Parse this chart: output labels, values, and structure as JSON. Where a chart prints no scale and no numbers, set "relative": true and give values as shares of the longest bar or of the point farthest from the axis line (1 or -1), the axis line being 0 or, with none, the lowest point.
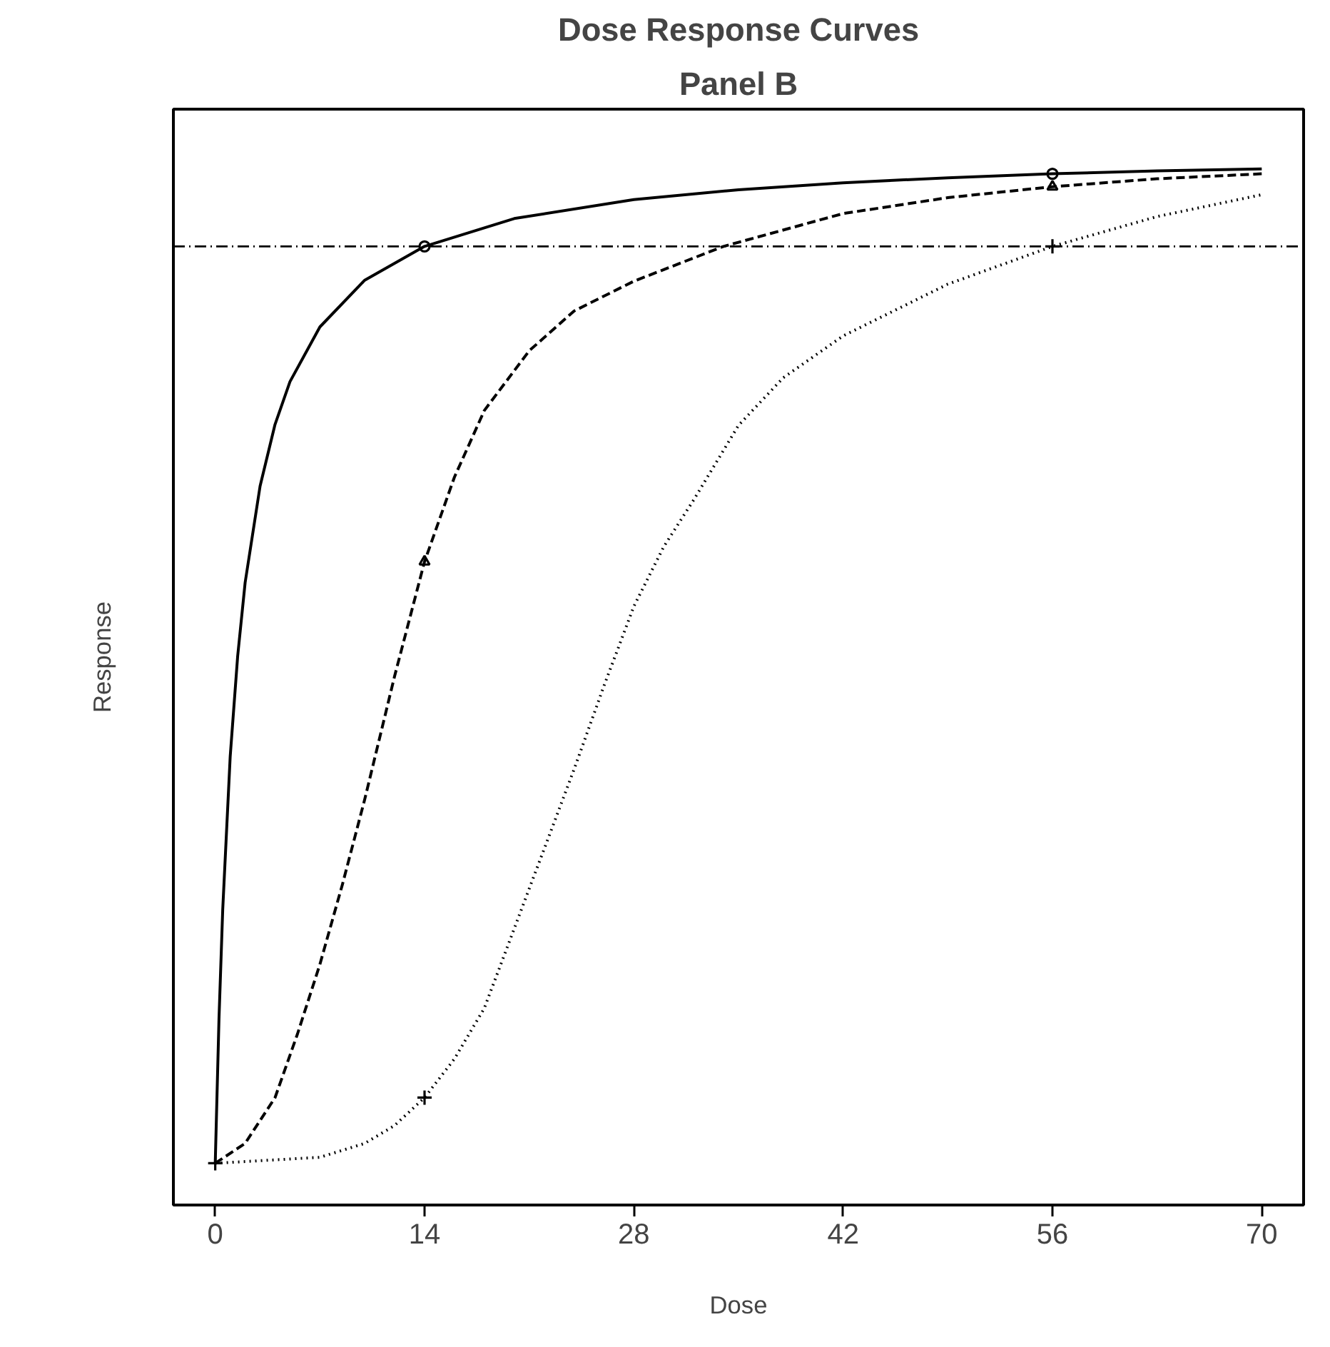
{
  "chart_data": {
    "type": "line",
    "title": "Dose Response Curves",
    "subtitle": "Panel B",
    "xlabel": "Dose",
    "ylabel": "Response",
    "relative": true,
    "xlim": [
      -2.8,
      72.8
    ],
    "xticks": [
      0,
      14,
      28,
      42,
      56,
      70
    ],
    "grid": false,
    "series": [
      {
        "type": "scatter",
        "color": "#000000",
        "marker": "circle",
        "x": [
          14,
          56
        ],
        "values": [
          0.922,
          0.995
        ]
      },
      {
        "type": "scatter",
        "color": "#000000",
        "marker": "triangle",
        "x": [
          14,
          56
        ],
        "values": [
          0.605,
          0.982
        ]
      },
      {
        "type": "scatter",
        "color": "#000000",
        "marker": "cross",
        "x": [
          0,
          14,
          56
        ],
        "values": [
          0,
          0.066,
          0.922
        ]
      },
      {
        "color": "#000000",
        "line_style": "solid",
        "marker": "none",
        "x": [
          0,
          0.25,
          0.5,
          1,
          1.5,
          2,
          3,
          4,
          5,
          7,
          10,
          14,
          20,
          28,
          35,
          42,
          49,
          56,
          63,
          70
        ],
        "values": [
          0,
          0.145,
          0.255,
          0.409,
          0.51,
          0.584,
          0.681,
          0.743,
          0.786,
          0.841,
          0.888,
          0.922,
          0.95,
          0.969,
          0.979,
          0.986,
          0.991,
          0.995,
          0.998,
          1.0
        ]
      },
      {
        "color": "#000000",
        "line_style": "dashed",
        "marker": "none",
        "x": [
          0,
          2,
          4,
          5.5,
          7,
          8.5,
          10,
          12,
          14,
          16,
          18,
          21,
          24,
          28,
          34,
          42,
          49,
          56,
          63,
          70
        ],
        "values": [
          0,
          0.02,
          0.066,
          0.13,
          0.2,
          0.28,
          0.366,
          0.49,
          0.605,
          0.69,
          0.757,
          0.817,
          0.857,
          0.887,
          0.922,
          0.955,
          0.971,
          0.982,
          0.99,
          0.995
        ]
      },
      {
        "color": "#000000",
        "line_style": "dotted",
        "marker": "none",
        "x": [
          0,
          7,
          10,
          12,
          14,
          16,
          18,
          21,
          24,
          26,
          28,
          30,
          32,
          35,
          38,
          42,
          49,
          56,
          63,
          70
        ],
        "values": [
          0,
          0.006,
          0.02,
          0.038,
          0.066,
          0.105,
          0.156,
          0.276,
          0.396,
          0.48,
          0.56,
          0.62,
          0.667,
          0.742,
          0.79,
          0.832,
          0.884,
          0.922,
          0.952,
          0.974
        ]
      }
    ],
    "ref_lines": [
      {
        "axis": "y",
        "value": 0.922,
        "line_style": "dashdot",
        "color": "#000000"
      }
    ]
  }
}
